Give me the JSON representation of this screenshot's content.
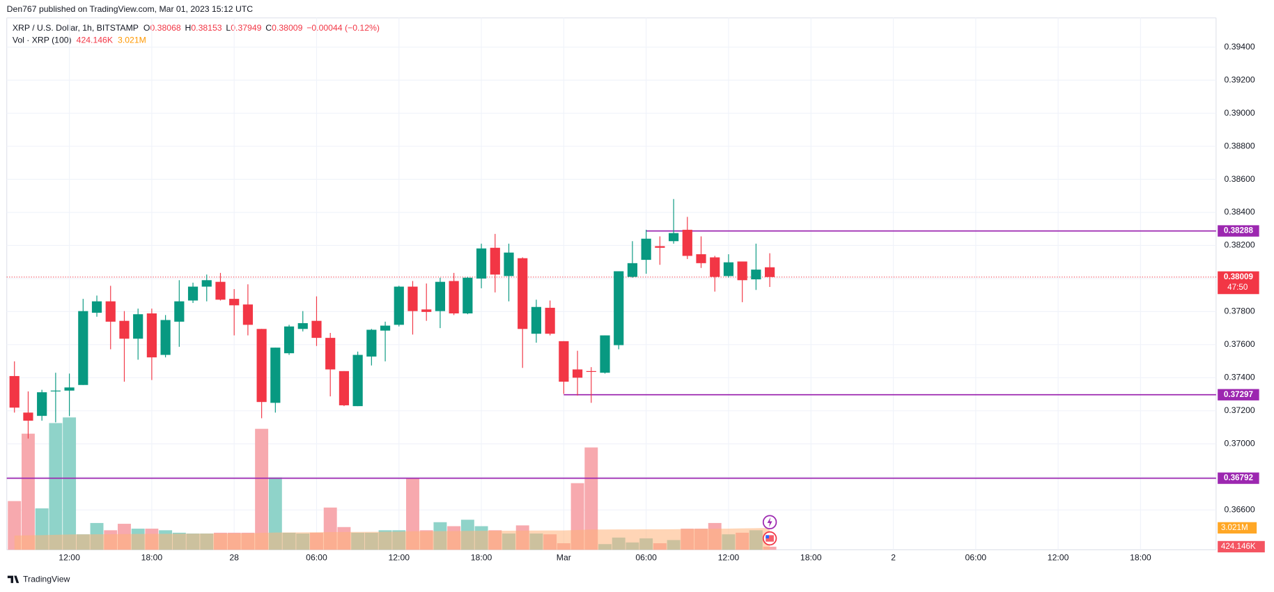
{
  "chart_data": {
    "type": "candlestick",
    "publisher": "Den767 published on TradingView.com, Mar 01, 2023 15:12 UTC",
    "title": "XRP / U.S. Dollar, 1h, BITSTAMP",
    "ohlc_letters": [
      "O",
      "H",
      "L",
      "C"
    ],
    "change": "−0.00044 (−0.12%)",
    "volume_title": "Vol · XRP (100)",
    "volume_last_label": "424.146K",
    "volume_ma_last_label": "3.021M",
    "countdown": "47:50",
    "brand": "TradingView",
    "x": [
      8,
      9,
      10,
      11,
      12,
      13,
      14,
      15,
      16,
      17,
      18,
      19,
      20,
      21,
      22,
      23,
      24,
      25,
      26,
      27,
      28,
      29,
      30,
      31,
      32,
      33,
      34,
      35,
      36,
      37,
      38,
      39,
      40,
      41,
      42,
      43,
      44,
      45,
      46,
      47,
      48,
      49,
      50,
      51,
      52,
      53,
      54,
      55,
      56,
      57,
      58,
      59,
      60,
      61,
      62,
      63
    ],
    "open": [
      0.3741,
      0.37189,
      0.37169,
      0.37317,
      0.37322,
      0.37356,
      0.37793,
      0.37862,
      0.37744,
      0.37636,
      0.37789,
      0.37538,
      0.37739,
      0.37867,
      0.37951,
      0.3798,
      0.37877,
      0.37843,
      0.37695,
      0.37248,
      0.37548,
      0.37695,
      0.37744,
      0.37641,
      0.3744,
      0.37228,
      0.37528,
      0.37685,
      0.3772,
      0.37951,
      0.37813,
      0.37803,
      0.37985,
      0.37789,
      0.38,
      0.38186,
      0.38015,
      0.38123,
      0.37666,
      0.37823,
      0.37621,
      0.3745,
      0.3744,
      0.3743,
      0.37597,
      0.3801,
      0.38113,
      0.38196,
      0.38226,
      0.38295,
      0.38147,
      0.38128,
      0.38015,
      0.38103,
      0.37995,
      0.38068
    ],
    "high": [
      0.37499,
      0.37317,
      0.37327,
      0.3743,
      0.37425,
      0.37877,
      0.37897,
      0.37956,
      0.37803,
      0.37818,
      0.37818,
      0.37779,
      0.3799,
      0.37975,
      0.38024,
      0.38034,
      0.37936,
      0.37965,
      0.37695,
      0.37582,
      0.3772,
      0.37803,
      0.37892,
      0.37671,
      0.3744,
      0.37558,
      0.37695,
      0.37739,
      0.37956,
      0.37985,
      0.3797,
      0.38005,
      0.38034,
      0.3801,
      0.38211,
      0.3827,
      0.38211,
      0.38128,
      0.37872,
      0.37867,
      0.37621,
      0.37563,
      0.37464,
      0.37656,
      0.38044,
      0.38226,
      0.38295,
      0.38255,
      0.38481,
      0.38373,
      0.38255,
      0.38137,
      0.38147,
      0.38103,
      0.38211,
      0.38153
    ],
    "low": [
      0.37189,
      0.37032,
      0.3714,
      0.3713,
      0.37168,
      0.37356,
      0.37769,
      0.37572,
      0.37376,
      0.37509,
      0.37386,
      0.37523,
      0.37587,
      0.37852,
      0.37862,
      0.37867,
      0.37656,
      0.37656,
      0.37155,
      0.37189,
      0.37538,
      0.3768,
      0.37592,
      0.37287,
      0.37228,
      0.37228,
      0.37474,
      0.37499,
      0.3771,
      0.37661,
      0.37744,
      0.377,
      0.37779,
      0.37784,
      0.37941,
      0.37916,
      0.37862,
      0.37459,
      0.37612,
      0.37656,
      0.37302,
      0.37292,
      0.37248,
      0.37425,
      0.37572,
      0.38005,
      0.38029,
      0.38083,
      0.38211,
      0.38118,
      0.38064,
      0.37921,
      0.38005,
      0.37857,
      0.37931,
      0.37949
    ],
    "close": [
      0.37219,
      0.3714,
      0.37312,
      0.37322,
      0.37341,
      0.37803,
      0.37862,
      0.37739,
      0.37636,
      0.37784,
      0.37523,
      0.37749,
      0.37862,
      0.37951,
      0.3799,
      0.37872,
      0.37838,
      0.3772,
      0.37253,
      0.37582,
      0.3771,
      0.3773,
      0.37641,
      0.3745,
      0.37233,
      0.37538,
      0.3769,
      0.37715,
      0.37951,
      0.37803,
      0.37798,
      0.3798,
      0.37789,
      0.38005,
      0.38182,
      0.38024,
      0.38157,
      0.37695,
      0.37828,
      0.37666,
      0.37376,
      0.374,
      0.37435,
      0.37656,
      0.38044,
      0.38093,
      0.38241,
      0.38186,
      0.38275,
      0.38137,
      0.38093,
      0.3801,
      0.38098,
      0.3799,
      0.38054,
      0.38009
    ],
    "volume": [
      6710000,
      16000000,
      5710000,
      17460000,
      18240000,
      2130000,
      3690000,
      2690000,
      3580000,
      2910000,
      2910000,
      2690000,
      2350000,
      2240000,
      2240000,
      2350000,
      2350000,
      2350000,
      16670000,
      9960000,
      2350000,
      2240000,
      2350000,
      5820000,
      3130000,
      2350000,
      2350000,
      2690000,
      2690000,
      9850000,
      2690000,
      3800000,
      3250000,
      4140000,
      3250000,
      2690000,
      2240000,
      3360000,
      2240000,
      2130000,
      900000,
      9180000,
      14100000,
      780000,
      1680000,
      1010000,
      1570000,
      900000,
      1340000,
      2910000,
      2910000,
      3690000,
      2130000,
      2350000,
      2690000,
      424146
    ],
    "volume_ma": [
      1950000,
      1990000,
      2010000,
      2060000,
      2110000,
      2120000,
      2140000,
      2150000,
      2170000,
      2180000,
      2190000,
      2200000,
      2210000,
      2220000,
      2230000,
      2240000,
      2250000,
      2260000,
      2330000,
      2380000,
      2390000,
      2400000,
      2410000,
      2440000,
      2450000,
      2460000,
      2470000,
      2480000,
      2490000,
      2550000,
      2560000,
      2570000,
      2580000,
      2600000,
      2610000,
      2620000,
      2630000,
      2640000,
      2650000,
      2660000,
      2660000,
      2720000,
      2800000,
      2800000,
      2810000,
      2810000,
      2820000,
      2820000,
      2830000,
      2850000,
      2870000,
      2900000,
      2920000,
      2950000,
      2980000,
      3021000
    ],
    "volume_ylim": [
      0,
      73300000
    ],
    "up_color": "#089981",
    "down_color": "#f23645",
    "volume_up_color": "#8fd3c9",
    "volume_down_color": "#f7a9ae",
    "volume_ma_color": "#ffb27a",
    "level_color": "#9c27b0",
    "levels": [
      {
        "value": 0.38288,
        "x_start": 54
      },
      {
        "value": 0.37297,
        "x_start": 48
      },
      {
        "value": 0.36792
      }
    ],
    "xlim": [
      7.44,
      95.5
    ],
    "ylim": [
      0.36359,
      0.39577
    ],
    "xticks": [
      {
        "value": 12,
        "label": "12:00"
      },
      {
        "value": 18,
        "label": "18:00"
      },
      {
        "value": 24,
        "label": "28"
      },
      {
        "value": 30,
        "label": "06:00"
      },
      {
        "value": 36,
        "label": "12:00"
      },
      {
        "value": 42,
        "label": "18:00"
      },
      {
        "value": 48,
        "label": "Mar"
      },
      {
        "value": 54,
        "label": "06:00"
      },
      {
        "value": 60,
        "label": "12:00"
      },
      {
        "value": 66,
        "label": "18:00"
      },
      {
        "value": 72,
        "label": "2"
      },
      {
        "value": 78,
        "label": "06:00"
      },
      {
        "value": 84,
        "label": "12:00"
      },
      {
        "value": 90,
        "label": "18:00"
      }
    ],
    "yticks": [
      {
        "value": 0.366,
        "label": "0.36600"
      },
      {
        "value": 0.368,
        "label": "0.36800"
      },
      {
        "value": 0.37,
        "label": "0.37000"
      },
      {
        "value": 0.372,
        "label": "0.37200"
      },
      {
        "value": 0.374,
        "label": "0.37400"
      },
      {
        "value": 0.376,
        "label": "0.37600"
      },
      {
        "value": 0.378,
        "label": "0.37800"
      },
      {
        "value": 0.38,
        "label": "0.38000"
      },
      {
        "value": 0.382,
        "label": "0.38200"
      },
      {
        "value": 0.384,
        "label": "0.38400"
      },
      {
        "value": 0.386,
        "label": "0.38600"
      },
      {
        "value": 0.388,
        "label": "0.38800"
      },
      {
        "value": 0.39,
        "label": "0.39000"
      },
      {
        "value": 0.392,
        "label": "0.39200"
      },
      {
        "value": 0.394,
        "label": "0.39400"
      }
    ],
    "grid": true
  }
}
